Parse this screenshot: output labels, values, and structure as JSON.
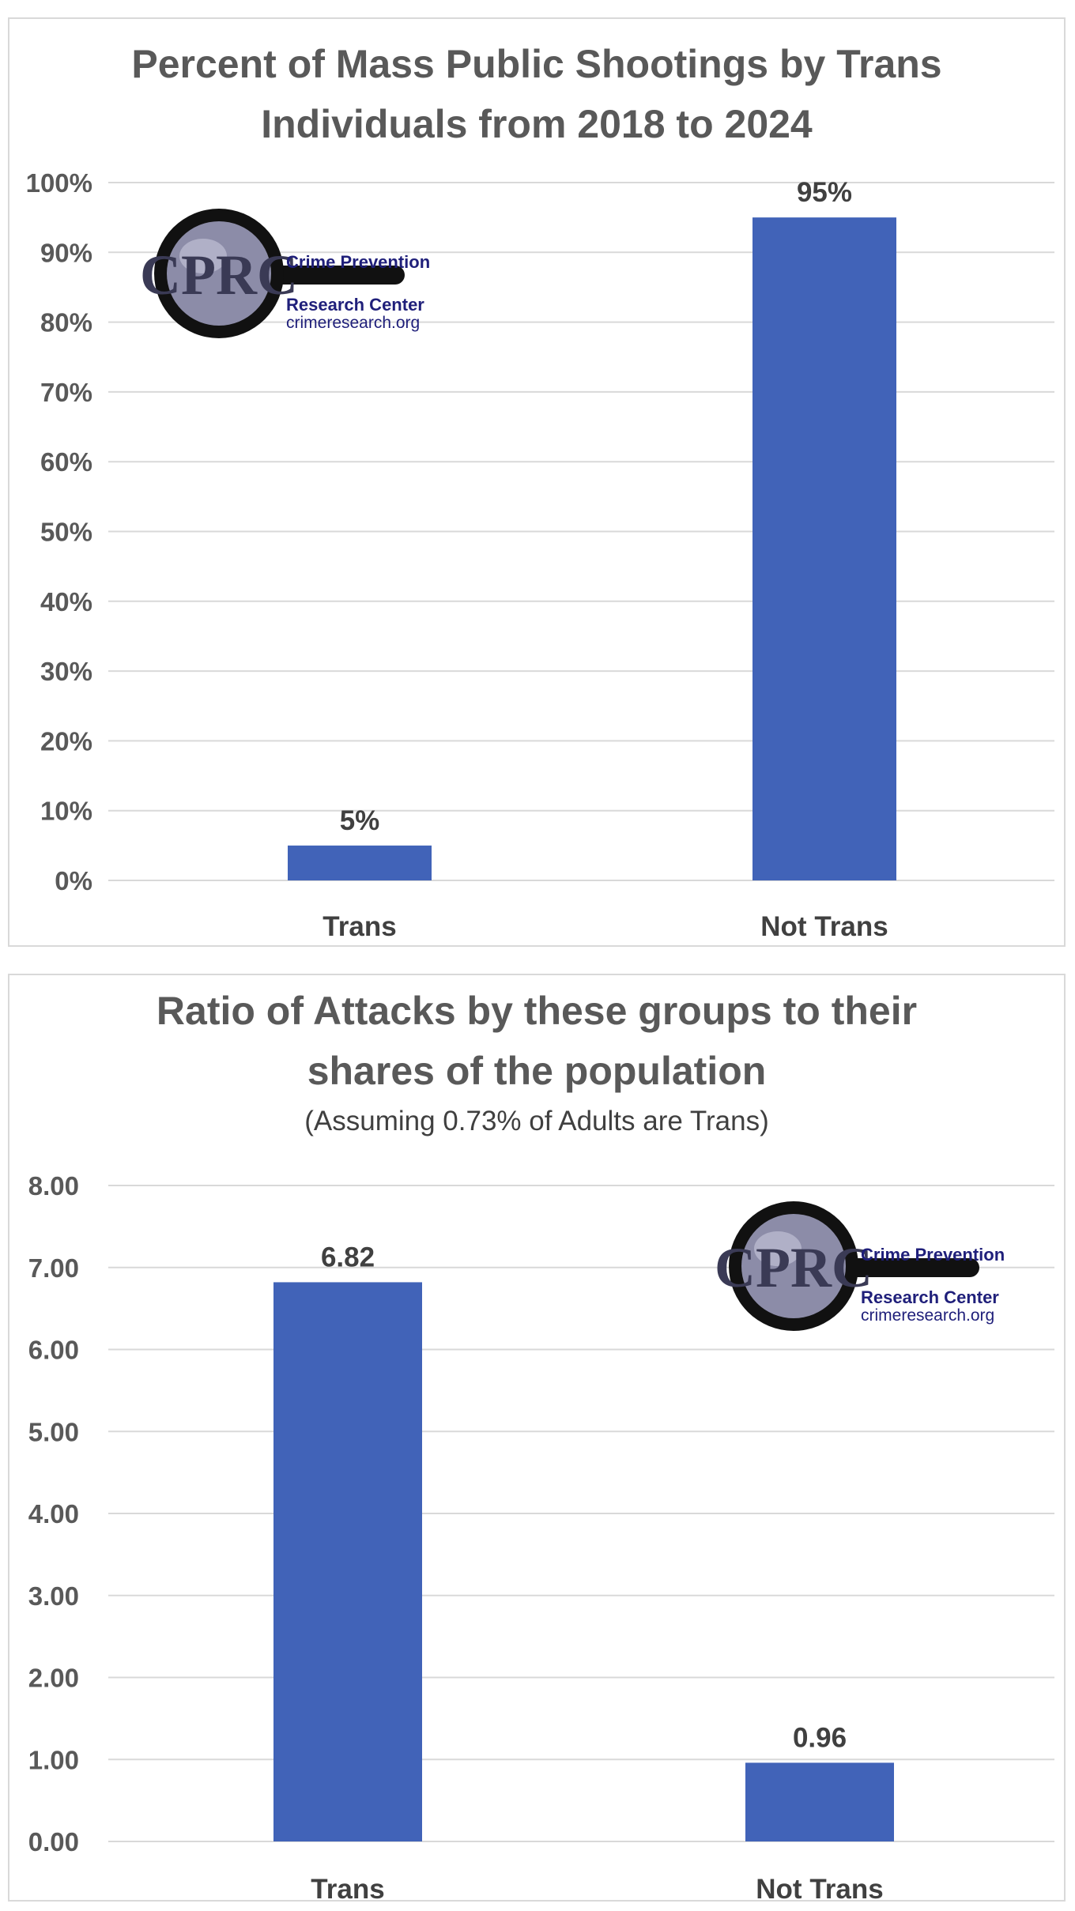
{
  "charts": [
    {
      "title_lines": [
        "Percent of Mass Public Shootings by Trans",
        "Individuals from 2018 to 2024"
      ],
      "subtitle": "",
      "logo": {
        "monogram": "CPRC",
        "line1": "Crime Prevention",
        "line2": "Research Center",
        "line3": "crimeresearch.org",
        "placement": "top-left"
      }
    },
    {
      "title_lines": [
        "Ratio of Attacks by these groups to their",
        "shares of the population"
      ],
      "subtitle": "(Assuming 0.73% of Adults are Trans)",
      "logo": {
        "monogram": "CPRC",
        "line1": "Crime Prevention",
        "line2": "Research Center",
        "line3": "crimeresearch.org",
        "placement": "top-right"
      }
    }
  ],
  "chart_data": [
    {
      "type": "bar",
      "title": "Percent of Mass Public Shootings by Trans Individuals from 2018 to 2024",
      "categories": [
        "Trans",
        "Not Trans"
      ],
      "values": [
        5,
        95
      ],
      "data_labels": [
        "5%",
        "95%"
      ],
      "ylim": [
        0,
        100
      ],
      "yticks": [
        0,
        10,
        20,
        30,
        40,
        50,
        60,
        70,
        80,
        90,
        100
      ],
      "ytick_labels": [
        "0%",
        "10%",
        "20%",
        "30%",
        "40%",
        "50%",
        "60%",
        "70%",
        "80%",
        "90%",
        "100%"
      ],
      "xlabel": "",
      "ylabel": "",
      "grid": true,
      "legend": "none",
      "bar_color": "#4163b8"
    },
    {
      "type": "bar",
      "title": "Ratio of Attacks by these groups to their shares of the population",
      "subtitle": "(Assuming 0.73% of Adults are Trans)",
      "categories": [
        "Trans",
        "Not Trans"
      ],
      "values": [
        6.82,
        0.96
      ],
      "data_labels": [
        "6.82",
        "0.96"
      ],
      "ylim": [
        0,
        8
      ],
      "yticks": [
        0,
        1,
        2,
        3,
        4,
        5,
        6,
        7,
        8
      ],
      "ytick_labels": [
        "0.00",
        "1.00",
        "2.00",
        "3.00",
        "4.00",
        "5.00",
        "6.00",
        "7.00",
        "8.00"
      ],
      "xlabel": "",
      "ylabel": "",
      "grid": true,
      "legend": "none",
      "bar_color": "#4163b8"
    }
  ]
}
